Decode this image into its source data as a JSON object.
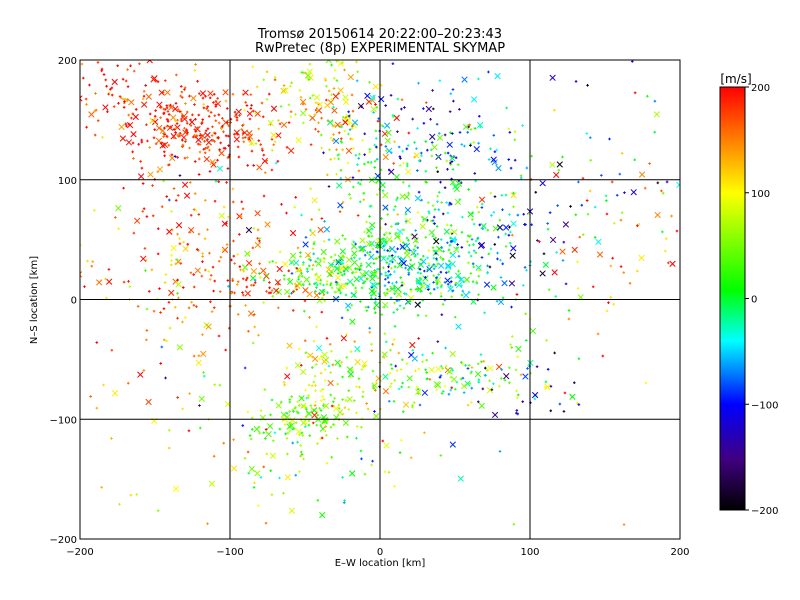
{
  "chart_data": {
    "type": "scatter",
    "title": "Tromsø 20150614 20:22:00–20:23:43",
    "subtitle": "RwPretec (8p) EXPERIMENTAL SKYMAP",
    "xlabel": "E–W location [km]",
    "ylabel": "N–S location [km]",
    "xlim": [
      -200,
      200
    ],
    "ylim": [
      -200,
      200
    ],
    "x_ticks": [
      -200,
      -100,
      0,
      100,
      200
    ],
    "y_ticks": [
      -200,
      -100,
      0,
      100,
      200
    ],
    "x_tick_labels": [
      "−200",
      "−100",
      "0",
      "100",
      "200"
    ],
    "y_tick_labels": [
      "−200",
      "−100",
      "0",
      "100",
      "200"
    ],
    "grid": true,
    "colorbar": {
      "label": "[m/s]",
      "range": [
        -200,
        200
      ],
      "ticks": [
        200,
        100,
        0,
        -100,
        -200
      ],
      "tick_labels": [
        "200",
        "100",
        "0",
        "−100",
        "−200"
      ],
      "colors": [
        "#000000",
        "#400080",
        "#0000ff",
        "#00ffff",
        "#00ff00",
        "#ffff00",
        "#ff0000"
      ]
    },
    "marker_types": [
      "cross (x)",
      "plus (+)"
    ],
    "clusters": [
      {
        "x": -120,
        "y": 140,
        "sx": 25,
        "sy": 15,
        "n": 260,
        "v": 185,
        "dv": 25
      },
      {
        "x": -165,
        "y": 170,
        "sx": 25,
        "sy": 18,
        "n": 110,
        "v": 175,
        "dv": 30
      },
      {
        "x": -40,
        "y": 160,
        "sx": 25,
        "sy": 25,
        "n": 170,
        "v": 110,
        "dv": 50
      },
      {
        "x": 25,
        "y": 130,
        "sx": 30,
        "sy": 25,
        "n": 140,
        "v": -70,
        "dv": 55
      },
      {
        "x": 25,
        "y": 65,
        "sx": 28,
        "sy": 30,
        "n": 170,
        "v": 20,
        "dv": 45
      },
      {
        "x": 20,
        "y": 25,
        "sx": 30,
        "sy": 18,
        "n": 300,
        "v": -20,
        "dv": 45
      },
      {
        "x": -30,
        "y": 20,
        "sx": 28,
        "sy": 15,
        "n": 170,
        "v": 30,
        "dv": 45
      },
      {
        "x": 60,
        "y": 50,
        "sx": 30,
        "sy": 30,
        "n": 90,
        "v": -90,
        "dv": 60
      },
      {
        "x": -120,
        "y": 50,
        "sx": 45,
        "sy": 45,
        "n": 160,
        "v": 160,
        "dv": 45
      },
      {
        "x": -90,
        "y": 15,
        "sx": 25,
        "sy": 15,
        "n": 80,
        "v": 175,
        "dv": 25
      },
      {
        "x": -50,
        "y": -100,
        "sx": 15,
        "sy": 12,
        "n": 110,
        "v": 30,
        "dv": 30
      },
      {
        "x": -25,
        "y": -70,
        "sx": 22,
        "sy": 22,
        "n": 110,
        "v": 90,
        "dv": 40
      },
      {
        "x": 50,
        "y": -60,
        "sx": 40,
        "sy": 15,
        "n": 120,
        "v": 20,
        "dv": 60
      },
      {
        "x": -50,
        "y": -140,
        "sx": 35,
        "sy": 20,
        "n": 40,
        "v": 40,
        "dv": 70
      },
      {
        "x": 100,
        "y": -80,
        "sx": 20,
        "sy": 15,
        "n": 25,
        "v": -140,
        "dv": 50
      },
      {
        "x": 130,
        "y": 120,
        "sx": 45,
        "sy": 50,
        "n": 70,
        "v": -50,
        "dv": 100
      },
      {
        "x": 150,
        "y": 40,
        "sx": 40,
        "sy": 40,
        "n": 50,
        "v": 160,
        "dv": 60
      },
      {
        "x": -150,
        "y": -80,
        "sx": 40,
        "sy": 60,
        "n": 70,
        "v": 140,
        "dv": 60
      },
      {
        "x": 0,
        "y": 0,
        "sx": 110,
        "sy": 100,
        "n": 140,
        "v": 60,
        "dv": 120
      }
    ]
  }
}
